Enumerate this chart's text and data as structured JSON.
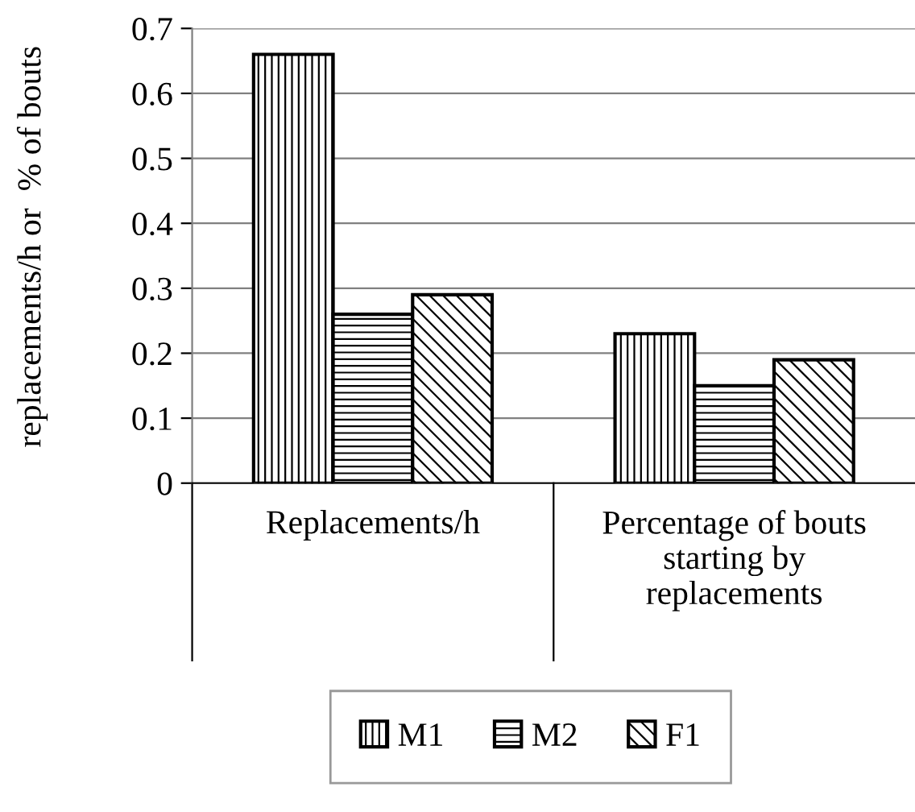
{
  "chart_data": {
    "type": "bar",
    "ylabel": "replacements/h or  % of bouts",
    "categories": [
      "Replacements/h",
      "Percentage of bouts\nstarting by\nreplacements"
    ],
    "series": [
      {
        "name": "M1",
        "color": "#000000",
        "values": [
          0.66,
          0.23
        ]
      },
      {
        "name": "M2",
        "color": "#000000",
        "values": [
          0.26,
          0.15
        ]
      },
      {
        "name": "F1",
        "color": "#000000",
        "values": [
          0.29,
          0.19
        ]
      }
    ],
    "ylim": [
      0,
      0.7
    ],
    "yticks": [
      0,
      0.1,
      0.2,
      0.3,
      0.4,
      0.5,
      0.6,
      0.7
    ],
    "grid": "y",
    "legend": "bottom"
  }
}
